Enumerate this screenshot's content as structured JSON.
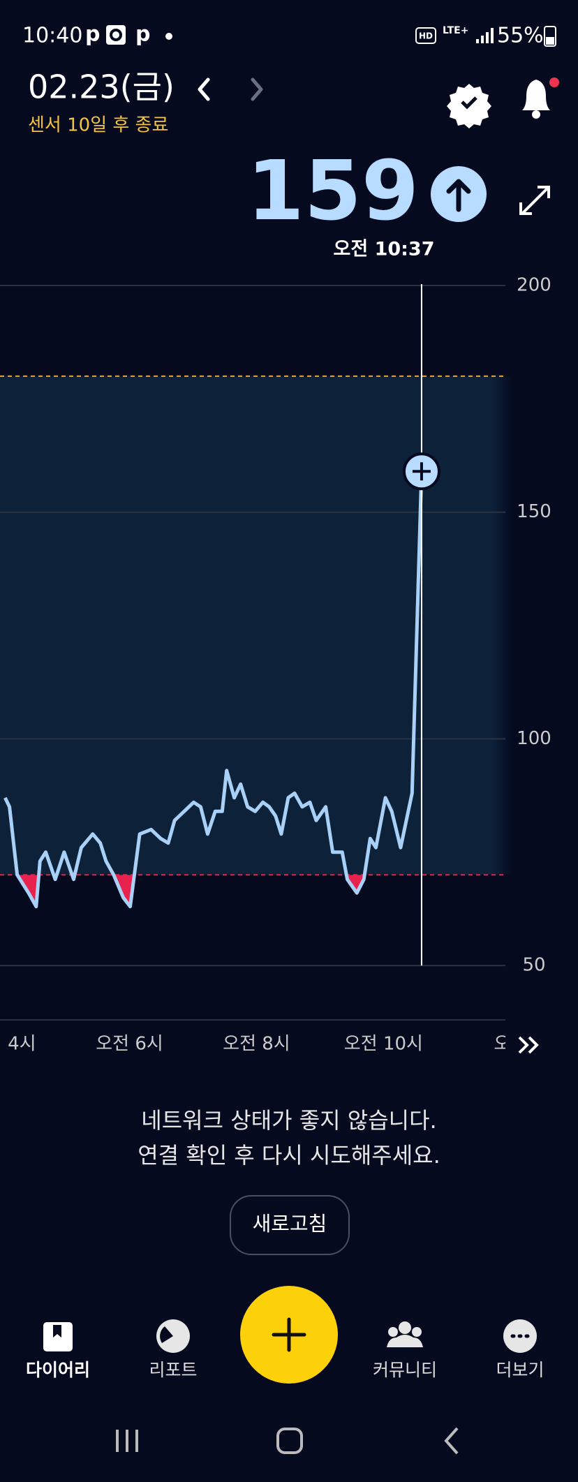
{
  "status_bar": {
    "time": "10:40",
    "notifications": [
      "p",
      "p"
    ],
    "hd": "HD",
    "network": "LTE+",
    "battery": "55%"
  },
  "header": {
    "date": "02.23(금)",
    "sensor_notice": "센서 10일 후 종료"
  },
  "current": {
    "value": "159",
    "time": "오전 10:37"
  },
  "chart_data": {
    "type": "line",
    "x": [
      4.04,
      4.11,
      4.23,
      4.41,
      4.53,
      4.59,
      4.68,
      4.83,
      4.97,
      5.12,
      5.24,
      5.42,
      5.54,
      5.63,
      5.75,
      5.9,
      6.01,
      6.16,
      6.34,
      6.49,
      6.61,
      6.71,
      6.86,
      7.01,
      7.12,
      7.23,
      7.35,
      7.46,
      7.53,
      7.65,
      7.75,
      7.86,
      7.98,
      8.1,
      8.2,
      8.3,
      8.39,
      8.5,
      8.6,
      8.72,
      8.84,
      8.94,
      9.09,
      9.2,
      9.35,
      9.43,
      9.58,
      9.69,
      9.79,
      9.88,
      10.03,
      10.13,
      10.27,
      10.45,
      10.6
    ],
    "series": [
      {
        "color": "#a9d1f7",
        "values": [
          87,
          85,
          70,
          66,
          63,
          73,
          75,
          69,
          75,
          69,
          76,
          79,
          77,
          73,
          70,
          65,
          63,
          79,
          80,
          78,
          77,
          82,
          84,
          86,
          85,
          79,
          84,
          84,
          93,
          87,
          90,
          85,
          84,
          86,
          85,
          83,
          79,
          87,
          88,
          85,
          86,
          82,
          85,
          75,
          75,
          69,
          66,
          69,
          78,
          76,
          87,
          84,
          76,
          88,
          159
        ]
      }
    ],
    "target_range": [
      70,
      180
    ],
    "low_color": "#e8224f",
    "high_line_color": "#e8a53a",
    "xlim": [
      3.96,
      11.92
    ],
    "xticks": [
      {
        "value": 4,
        "label": "4시"
      },
      {
        "value": 6,
        "label": "오전 6시"
      },
      {
        "value": 8,
        "label": "오전 8시"
      },
      {
        "value": 10,
        "label": "오전 10시"
      },
      {
        "value": 12,
        "label": "오후"
      }
    ],
    "ylim": [
      38,
      200
    ],
    "yticks": [
      50,
      100,
      150,
      200
    ],
    "grid": true
  },
  "message": {
    "line1": "네트워크 상태가 좋지 않습니다.",
    "line2": "연결 확인 후 다시 시도해주세요.",
    "button": "새로고침"
  },
  "nav": {
    "items": [
      "다이어리",
      "리포트",
      "커뮤니티",
      "더보기"
    ]
  }
}
